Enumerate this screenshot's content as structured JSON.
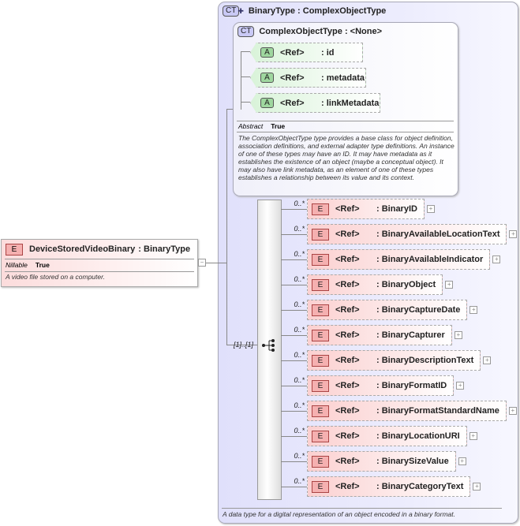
{
  "element": {
    "badge": "E",
    "name": "DeviceStoredVideoBinary",
    "type": ": BinaryType",
    "prop_label": "Nillable",
    "prop_value": "True",
    "description": "A video file stored on a computer."
  },
  "binary_type": {
    "badge": "CT",
    "title": "BinaryType : ComplexObjectType",
    "description": "A data type for a digital representation of an object encoded in a binary format."
  },
  "complex_object_type": {
    "badge": "CT",
    "title": "ComplexObjectType : <None>",
    "attributes": [
      {
        "badge": "A",
        "ref": "<Ref>",
        "name": ": id"
      },
      {
        "badge": "A",
        "ref": "<Ref>",
        "name": ": metadata"
      },
      {
        "badge": "A",
        "ref": "<Ref>",
        "name": ": linkMetadata"
      }
    ],
    "prop_label": "Abstract",
    "prop_value": "True",
    "description": "The ComplexObjectType type provides a base class for object definition, association definitions, and external adapter type definitions. An instance of one of these types may have an ID. It may have metadata as it establishes the existence of an object (maybe a conceptual object). It may also have link metadata, as an element of one of these types establishes a relationship between its value and its context."
  },
  "sequence": {
    "cardinality": "[1]..[1]"
  },
  "children": [
    {
      "card": "0..*",
      "badge": "E",
      "ref": "<Ref>",
      "name": ": BinaryID"
    },
    {
      "card": "0..*",
      "badge": "E",
      "ref": "<Ref>",
      "name": ": BinaryAvailableLocationText"
    },
    {
      "card": "0..*",
      "badge": "E",
      "ref": "<Ref>",
      "name": ": BinaryAvailableIndicator"
    },
    {
      "card": "0..*",
      "badge": "E",
      "ref": "<Ref>",
      "name": ": BinaryObject"
    },
    {
      "card": "0..*",
      "badge": "E",
      "ref": "<Ref>",
      "name": ": BinaryCaptureDate"
    },
    {
      "card": "0..*",
      "badge": "E",
      "ref": "<Ref>",
      "name": ": BinaryCapturer"
    },
    {
      "card": "0..*",
      "badge": "E",
      "ref": "<Ref>",
      "name": ": BinaryDescriptionText"
    },
    {
      "card": "0..*",
      "badge": "E",
      "ref": "<Ref>",
      "name": ": BinaryFormatID"
    },
    {
      "card": "0..*",
      "badge": "E",
      "ref": "<Ref>",
      "name": ": BinaryFormatStandardName"
    },
    {
      "card": "0..*",
      "badge": "E",
      "ref": "<Ref>",
      "name": ": BinaryLocationURI"
    },
    {
      "card": "0..*",
      "badge": "E",
      "ref": "<Ref>",
      "name": ": BinarySizeValue"
    },
    {
      "card": "0..*",
      "badge": "E",
      "ref": "<Ref>",
      "name": ": BinaryCategoryText"
    }
  ]
}
